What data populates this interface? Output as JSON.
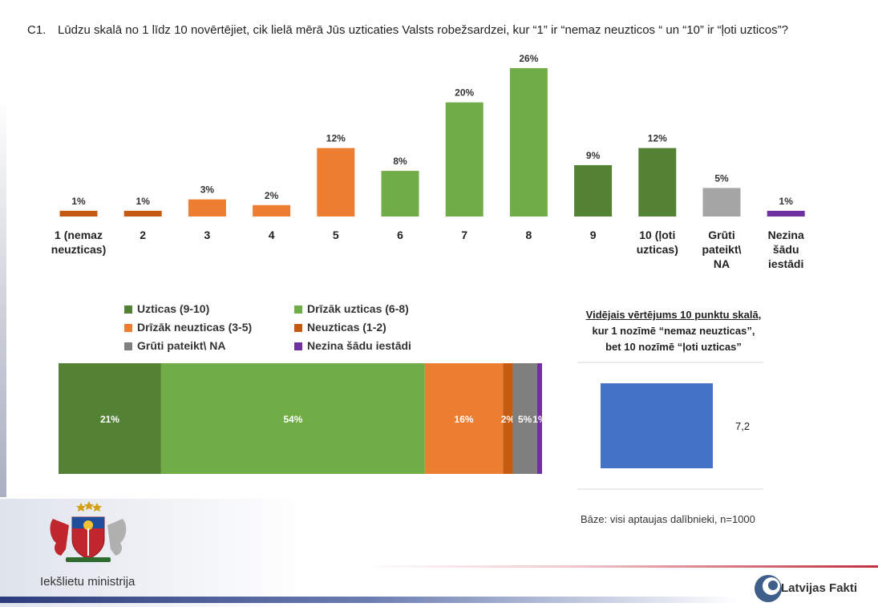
{
  "question": {
    "id": "C1.",
    "text": "Lūdzu skalā no 1 līdz 10 novērtējiet, cik lielā mērā Jūs uzticaties Valsts robežsardzei, kur “1” ir “nemaz neuzticos “ un “10” ir “ļoti uzticos”?"
  },
  "colors": {
    "dark_green": "#548235",
    "green": "#70AD47",
    "orange": "#ED7D31",
    "dark_orange": "#C55A11",
    "gray": "#A5A5A5",
    "gray_dark": "#7F7F7F",
    "purple": "#7030A0",
    "blue": "#4472C4"
  },
  "chart_data": [
    {
      "type": "bar",
      "categories": [
        [
          "1 (nemaz",
          "neuzticas)"
        ],
        [
          "2"
        ],
        [
          "3"
        ],
        [
          "4"
        ],
        [
          "5"
        ],
        [
          "6"
        ],
        [
          "7"
        ],
        [
          "8"
        ],
        [
          "9"
        ],
        [
          "10 (ļoti",
          "uzticas)"
        ],
        [
          "Grūti",
          "pateikt\\",
          "NA"
        ],
        [
          "Nezina",
          "šādu",
          "iestādi"
        ]
      ],
      "values": [
        1,
        1,
        3,
        2,
        12,
        8,
        20,
        26,
        9,
        12,
        5,
        1
      ],
      "data_labels": [
        "1%",
        "1%",
        "3%",
        "2%",
        "12%",
        "8%",
        "20%",
        "26%",
        "9%",
        "12%",
        "5%",
        "1%"
      ],
      "bar_colors": [
        "#C55A11",
        "#C55A11",
        "#ED7D31",
        "#ED7D31",
        "#ED7D31",
        "#70AD47",
        "#70AD47",
        "#70AD47",
        "#548235",
        "#548235",
        "#A5A5A5",
        "#7030A0"
      ],
      "ylim": [
        0,
        26
      ]
    },
    {
      "type": "bar",
      "orientation": "horizontal-stacked",
      "series": [
        {
          "name": "Uzticas (9-10)",
          "value": 21,
          "label": "21%",
          "color": "#548235"
        },
        {
          "name": "Drīzāk uzticas (6-8)",
          "value": 54,
          "label": "54%",
          "color": "#70AD47"
        },
        {
          "name": "Drīzāk neuzticas (3-5)",
          "value": 16,
          "label": "16%",
          "color": "#ED7D31"
        },
        {
          "name": "Neuzticas (1-2)",
          "value": 2,
          "label": "2%",
          "color": "#C55A11"
        },
        {
          "name": "Grūti pateikt\\ NA",
          "value": 5,
          "label": "5%",
          "color": "#7F7F7F"
        },
        {
          "name": "Nezina šādu iestādi",
          "value": 1,
          "label": "1%",
          "color": "#7030A0"
        }
      ],
      "legend_order": [
        0,
        1,
        2,
        3,
        4,
        5
      ],
      "legend": "top"
    },
    {
      "type": "bar",
      "orientation": "horizontal",
      "title_lines": [
        "Vidējais vērtējums 10 punktu skalā,",
        "kur 1 nozīmē “nemaz neuzticas”,",
        "bet 10 nozīmē “ļoti uzticas”"
      ],
      "values": [
        7.2
      ],
      "data_labels": [
        "7,2"
      ],
      "xlim": [
        0,
        10
      ],
      "color": "#4472C4"
    }
  ],
  "footer": {
    "base_note": "Bāze: visi aptaujas dalībnieki, n=1000",
    "ministry": "Iekšlietu ministrija",
    "brand": "Latvijas Fakti"
  }
}
